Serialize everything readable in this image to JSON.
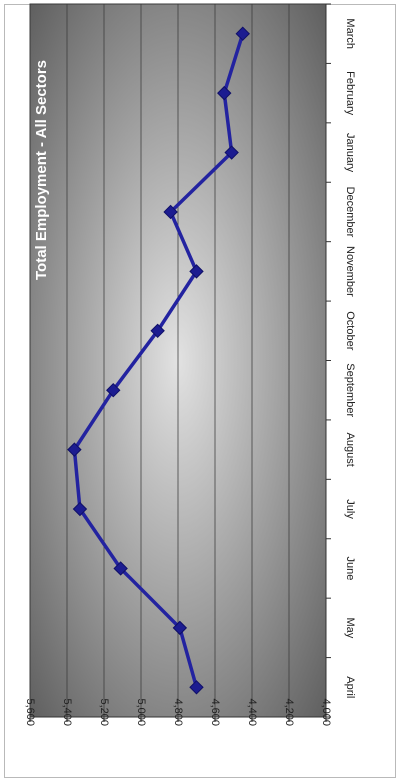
{
  "chart_data": {
    "type": "line",
    "title": "Total Employment - All Sectors",
    "categories": [
      "April",
      "May",
      "June",
      "July",
      "August",
      "September",
      "October",
      "November",
      "December",
      "January",
      "February",
      "March"
    ],
    "values": [
      4700,
      4790,
      5110,
      5330,
      5360,
      5150,
      4910,
      4700,
      4840,
      4510,
      4550,
      4450
    ],
    "ylim": [
      4000,
      5600
    ],
    "yticks": [
      4000,
      4200,
      4400,
      4600,
      4800,
      5000,
      5200,
      5400,
      5600
    ],
    "ytick_labels": [
      "4,000",
      "4,200",
      "4,400",
      "4,600",
      "4,800",
      "5,000",
      "5,200",
      "5,400",
      "5,600"
    ],
    "orientation": "rotated 90° clockwise",
    "grid": true,
    "legend": "none",
    "colors": {
      "line": "#2323a0",
      "marker": "#1c1c90",
      "plot_bg_dark": "#575757",
      "plot_bg_light": "#e2e2e2",
      "gridline": "#3a3a3a",
      "title_text": "#ffffff"
    }
  }
}
